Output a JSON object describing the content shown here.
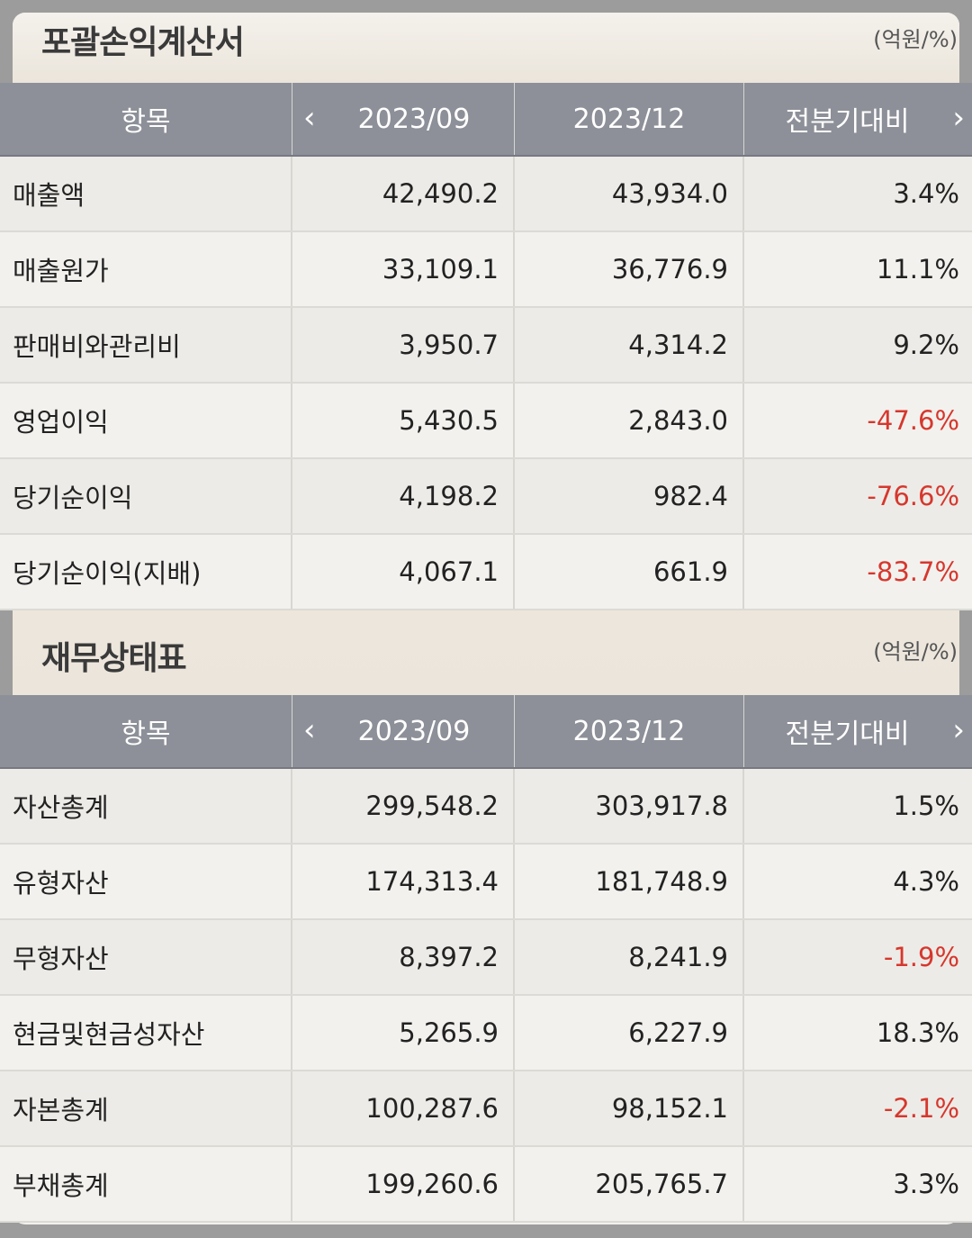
{
  "income_statement": {
    "title": "포괄손익계산서",
    "unit": "(억원/%)",
    "header": {
      "item": "항목",
      "col1": "2023/09",
      "col2": "2023/12",
      "col3": "전분기대비"
    },
    "rows": [
      {
        "name": "매출액",
        "v1": "42,490.2",
        "v2": "43,934.0",
        "chg": "3.4%"
      },
      {
        "name": "매출원가",
        "v1": "33,109.1",
        "v2": "36,776.9",
        "chg": "11.1%"
      },
      {
        "name": "판매비와관리비",
        "v1": "3,950.7",
        "v2": "4,314.2",
        "chg": "9.2%"
      },
      {
        "name": "영업이익",
        "v1": "5,430.5",
        "v2": "2,843.0",
        "chg": "-47.6%"
      },
      {
        "name": "당기순이익",
        "v1": "4,198.2",
        "v2": "982.4",
        "chg": "-76.6%"
      },
      {
        "name": "당기순이익(지배)",
        "v1": "4,067.1",
        "v2": "661.9",
        "chg": "-83.7%"
      }
    ]
  },
  "balance_sheet": {
    "title": "재무상태표",
    "unit": "(억원/%)",
    "header": {
      "item": "항목",
      "col1": "2023/09",
      "col2": "2023/12",
      "col3": "전분기대비"
    },
    "rows": [
      {
        "name": "자산총계",
        "v1": "299,548.2",
        "v2": "303,917.8",
        "chg": "1.5%"
      },
      {
        "name": "유형자산",
        "v1": "174,313.4",
        "v2": "181,748.9",
        "chg": "4.3%"
      },
      {
        "name": "무형자산",
        "v1": "8,397.2",
        "v2": "8,241.9",
        "chg": "-1.9%"
      },
      {
        "name": "현금및현금성자산",
        "v1": "5,265.9",
        "v2": "6,227.9",
        "chg": "18.3%"
      },
      {
        "name": "자본총계",
        "v1": "100,287.6",
        "v2": "98,152.1",
        "chg": "-2.1%"
      },
      {
        "name": "부채총계",
        "v1": "199,260.6",
        "v2": "205,765.7",
        "chg": "3.3%"
      }
    ]
  },
  "icons": {
    "prev": "chevron-left-icon",
    "next": "chevron-right-icon"
  },
  "colors": {
    "negative": "#d6372d",
    "header_bg": "#8d9098"
  }
}
